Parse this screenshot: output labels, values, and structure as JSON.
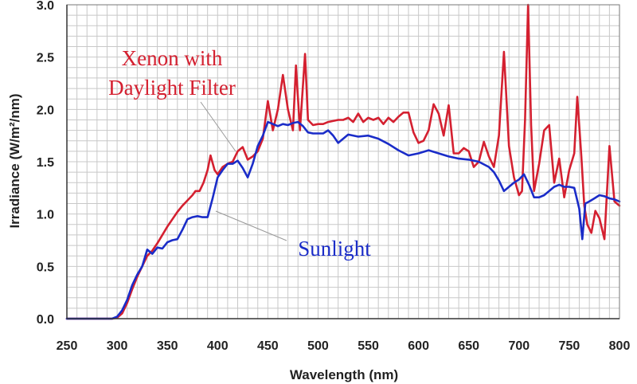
{
  "chart_data": {
    "type": "line",
    "xlabel": "Wavelength (nm)",
    "ylabel": "Irradiance (W/m²/nm)",
    "xlim": [
      250,
      800
    ],
    "ylim": [
      0,
      3
    ],
    "xticks": [
      "250",
      "300",
      "350",
      "400",
      "450",
      "500",
      "550",
      "600",
      "650",
      "700",
      "750",
      "800"
    ],
    "yticks": [
      "0.0",
      "0.5",
      "1.0",
      "1.5",
      "2.0",
      "2.5",
      "3.0"
    ],
    "grid": true,
    "annotations": [
      "Xenon with",
      "Daylight Filter",
      "Sunlight"
    ],
    "series": [
      {
        "name": "Xenon with Daylight Filter",
        "color": "#d42030",
        "points": [
          [
            250,
            0
          ],
          [
            295,
            0
          ],
          [
            300,
            0.01
          ],
          [
            305,
            0.05
          ],
          [
            310,
            0.15
          ],
          [
            315,
            0.28
          ],
          [
            320,
            0.4
          ],
          [
            325,
            0.5
          ],
          [
            330,
            0.6
          ],
          [
            335,
            0.65
          ],
          [
            340,
            0.72
          ],
          [
            345,
            0.8
          ],
          [
            350,
            0.88
          ],
          [
            355,
            0.95
          ],
          [
            360,
            1.02
          ],
          [
            365,
            1.08
          ],
          [
            370,
            1.13
          ],
          [
            375,
            1.18
          ],
          [
            378,
            1.22
          ],
          [
            382,
            1.22
          ],
          [
            386,
            1.3
          ],
          [
            390,
            1.42
          ],
          [
            393,
            1.56
          ],
          [
            397,
            1.42
          ],
          [
            400,
            1.38
          ],
          [
            405,
            1.45
          ],
          [
            410,
            1.48
          ],
          [
            415,
            1.5
          ],
          [
            420,
            1.6
          ],
          [
            425,
            1.64
          ],
          [
            430,
            1.52
          ],
          [
            435,
            1.55
          ],
          [
            440,
            1.6
          ],
          [
            445,
            1.72
          ],
          [
            450,
            2.08
          ],
          [
            455,
            1.8
          ],
          [
            460,
            2.0
          ],
          [
            465,
            2.33
          ],
          [
            470,
            2.0
          ],
          [
            475,
            1.8
          ],
          [
            478,
            2.42
          ],
          [
            482,
            1.8
          ],
          [
            487,
            2.53
          ],
          [
            490,
            1.9
          ],
          [
            495,
            1.85
          ],
          [
            500,
            1.86
          ],
          [
            505,
            1.86
          ],
          [
            510,
            1.88
          ],
          [
            520,
            1.9
          ],
          [
            525,
            1.9
          ],
          [
            530,
            1.92
          ],
          [
            535,
            1.88
          ],
          [
            540,
            1.96
          ],
          [
            545,
            1.88
          ],
          [
            550,
            1.92
          ],
          [
            555,
            1.9
          ],
          [
            560,
            1.92
          ],
          [
            565,
            1.86
          ],
          [
            570,
            1.92
          ],
          [
            575,
            1.88
          ],
          [
            580,
            1.93
          ],
          [
            585,
            1.97
          ],
          [
            590,
            1.97
          ],
          [
            595,
            1.78
          ],
          [
            600,
            1.68
          ],
          [
            605,
            1.7
          ],
          [
            610,
            1.8
          ],
          [
            615,
            2.05
          ],
          [
            620,
            1.96
          ],
          [
            625,
            1.75
          ],
          [
            630,
            2.04
          ],
          [
            635,
            1.58
          ],
          [
            640,
            1.58
          ],
          [
            645,
            1.63
          ],
          [
            650,
            1.6
          ],
          [
            655,
            1.45
          ],
          [
            660,
            1.5
          ],
          [
            665,
            1.69
          ],
          [
            670,
            1.55
          ],
          [
            675,
            1.45
          ],
          [
            680,
            1.75
          ],
          [
            685,
            2.55
          ],
          [
            690,
            1.65
          ],
          [
            695,
            1.35
          ],
          [
            700,
            1.18
          ],
          [
            703,
            1.22
          ],
          [
            706,
            1.9
          ],
          [
            709,
            3.0
          ],
          [
            712,
            1.85
          ],
          [
            715,
            1.22
          ],
          [
            720,
            1.48
          ],
          [
            725,
            1.8
          ],
          [
            730,
            1.85
          ],
          [
            735,
            1.3
          ],
          [
            740,
            1.53
          ],
          [
            745,
            1.16
          ],
          [
            750,
            1.42
          ],
          [
            755,
            1.58
          ],
          [
            758,
            2.12
          ],
          [
            762,
            1.55
          ],
          [
            765,
            1.08
          ],
          [
            768,
            0.9
          ],
          [
            772,
            0.82
          ],
          [
            776,
            1.03
          ],
          [
            780,
            0.96
          ],
          [
            785,
            0.76
          ],
          [
            790,
            1.65
          ],
          [
            795,
            1.12
          ],
          [
            800,
            1.08
          ]
        ]
      },
      {
        "name": "Sunlight",
        "color": "#1a2cc8",
        "points": [
          [
            250,
            0
          ],
          [
            295,
            0
          ],
          [
            300,
            0.02
          ],
          [
            305,
            0.08
          ],
          [
            310,
            0.18
          ],
          [
            315,
            0.32
          ],
          [
            320,
            0.42
          ],
          [
            325,
            0.5
          ],
          [
            330,
            0.66
          ],
          [
            335,
            0.62
          ],
          [
            340,
            0.68
          ],
          [
            345,
            0.67
          ],
          [
            350,
            0.73
          ],
          [
            355,
            0.75
          ],
          [
            360,
            0.76
          ],
          [
            365,
            0.85
          ],
          [
            370,
            0.95
          ],
          [
            375,
            0.97
          ],
          [
            380,
            0.98
          ],
          [
            385,
            0.97
          ],
          [
            390,
            0.97
          ],
          [
            395,
            1.15
          ],
          [
            400,
            1.35
          ],
          [
            405,
            1.42
          ],
          [
            410,
            1.48
          ],
          [
            415,
            1.48
          ],
          [
            420,
            1.51
          ],
          [
            425,
            1.44
          ],
          [
            430,
            1.35
          ],
          [
            435,
            1.48
          ],
          [
            440,
            1.65
          ],
          [
            445,
            1.75
          ],
          [
            450,
            1.88
          ],
          [
            455,
            1.86
          ],
          [
            460,
            1.84
          ],
          [
            465,
            1.86
          ],
          [
            470,
            1.85
          ],
          [
            475,
            1.87
          ],
          [
            480,
            1.88
          ],
          [
            485,
            1.84
          ],
          [
            490,
            1.78
          ],
          [
            495,
            1.77
          ],
          [
            500,
            1.77
          ],
          [
            505,
            1.77
          ],
          [
            510,
            1.8
          ],
          [
            515,
            1.75
          ],
          [
            520,
            1.68
          ],
          [
            525,
            1.72
          ],
          [
            530,
            1.76
          ],
          [
            540,
            1.74
          ],
          [
            550,
            1.75
          ],
          [
            560,
            1.72
          ],
          [
            570,
            1.67
          ],
          [
            580,
            1.61
          ],
          [
            590,
            1.56
          ],
          [
            600,
            1.58
          ],
          [
            610,
            1.61
          ],
          [
            620,
            1.58
          ],
          [
            630,
            1.55
          ],
          [
            640,
            1.53
          ],
          [
            650,
            1.52
          ],
          [
            660,
            1.5
          ],
          [
            670,
            1.45
          ],
          [
            675,
            1.4
          ],
          [
            680,
            1.32
          ],
          [
            685,
            1.22
          ],
          [
            690,
            1.26
          ],
          [
            695,
            1.3
          ],
          [
            700,
            1.33
          ],
          [
            705,
            1.38
          ],
          [
            710,
            1.28
          ],
          [
            715,
            1.16
          ],
          [
            720,
            1.16
          ],
          [
            725,
            1.18
          ],
          [
            730,
            1.22
          ],
          [
            735,
            1.26
          ],
          [
            740,
            1.28
          ],
          [
            745,
            1.26
          ],
          [
            750,
            1.26
          ],
          [
            755,
            1.25
          ],
          [
            760,
            1.05
          ],
          [
            763,
            0.76
          ],
          [
            766,
            1.1
          ],
          [
            770,
            1.12
          ],
          [
            775,
            1.15
          ],
          [
            780,
            1.18
          ],
          [
            785,
            1.17
          ],
          [
            790,
            1.15
          ],
          [
            795,
            1.14
          ],
          [
            800,
            1.12
          ]
        ]
      }
    ]
  }
}
